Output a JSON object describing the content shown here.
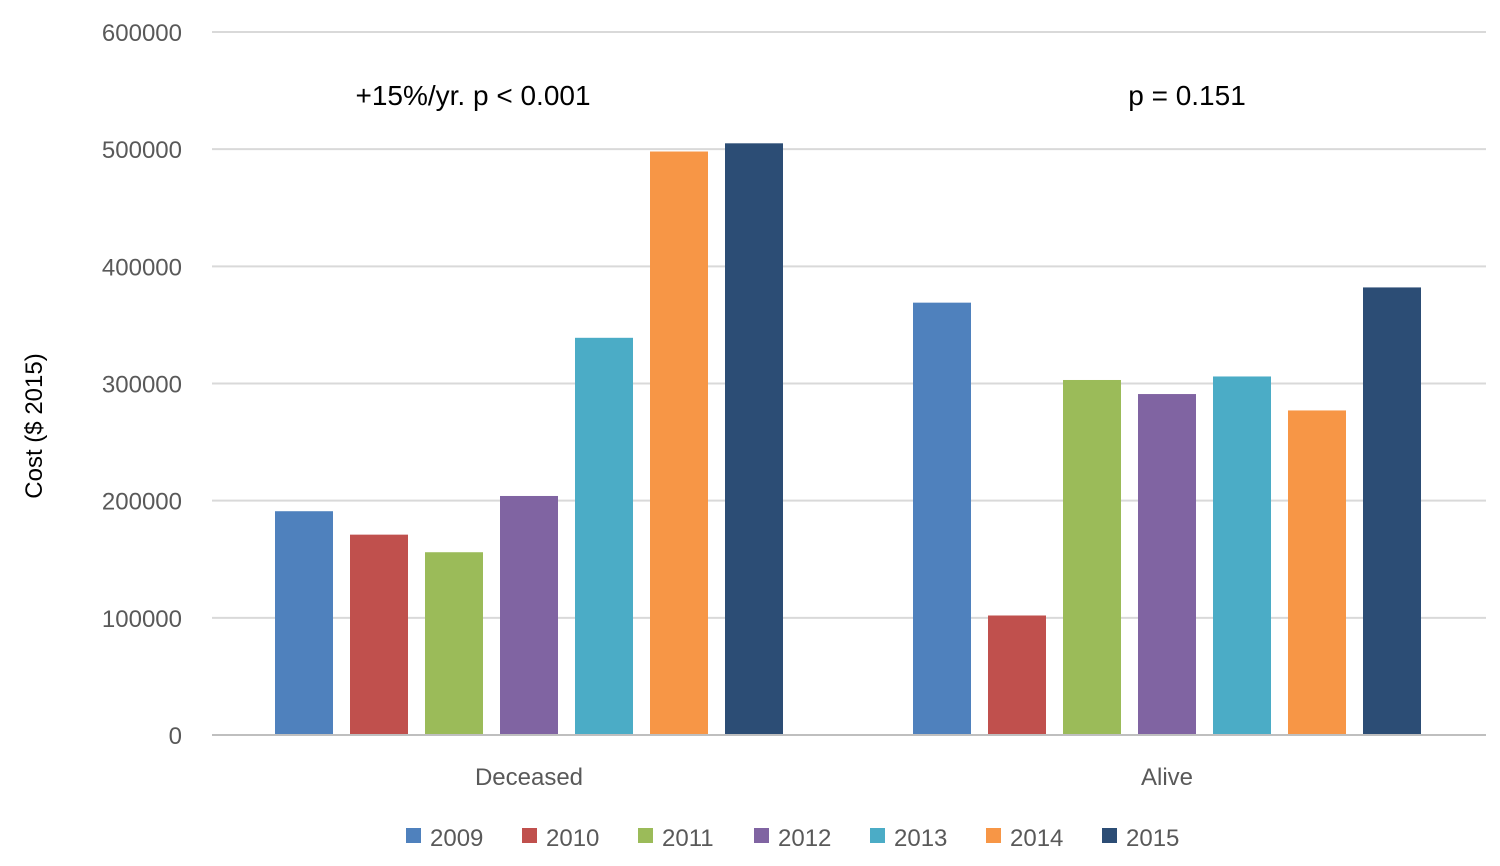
{
  "chart_data": {
    "type": "bar",
    "title": "",
    "xlabel": "",
    "ylabel": "Cost ($ 2015)",
    "ylim": [
      0,
      600000
    ],
    "yticks": [
      "0",
      "100000",
      "200000",
      "300000",
      "400000",
      "500000",
      "600000"
    ],
    "grid": true,
    "legend_position": "bottom",
    "categories": [
      "Deceased",
      "Alive"
    ],
    "series": [
      {
        "name": "2009",
        "color": "#4f81bd",
        "values": [
          191000,
          369000
        ]
      },
      {
        "name": "2010",
        "color": "#c0504d",
        "values": [
          171000,
          102000
        ]
      },
      {
        "name": "2011",
        "color": "#9bbb59",
        "values": [
          156000,
          303000
        ]
      },
      {
        "name": "2012",
        "color": "#8064a2",
        "values": [
          204000,
          291000
        ]
      },
      {
        "name": "2013",
        "color": "#4bacc6",
        "values": [
          339000,
          306000
        ]
      },
      {
        "name": "2014",
        "color": "#f79646",
        "values": [
          498000,
          277000
        ]
      },
      {
        "name": "2015",
        "color": "#2c4d75",
        "values": [
          505000,
          382000
        ]
      }
    ],
    "annotations": [
      "+15%/yr. p < 0.001",
      "p = 0.151"
    ]
  }
}
